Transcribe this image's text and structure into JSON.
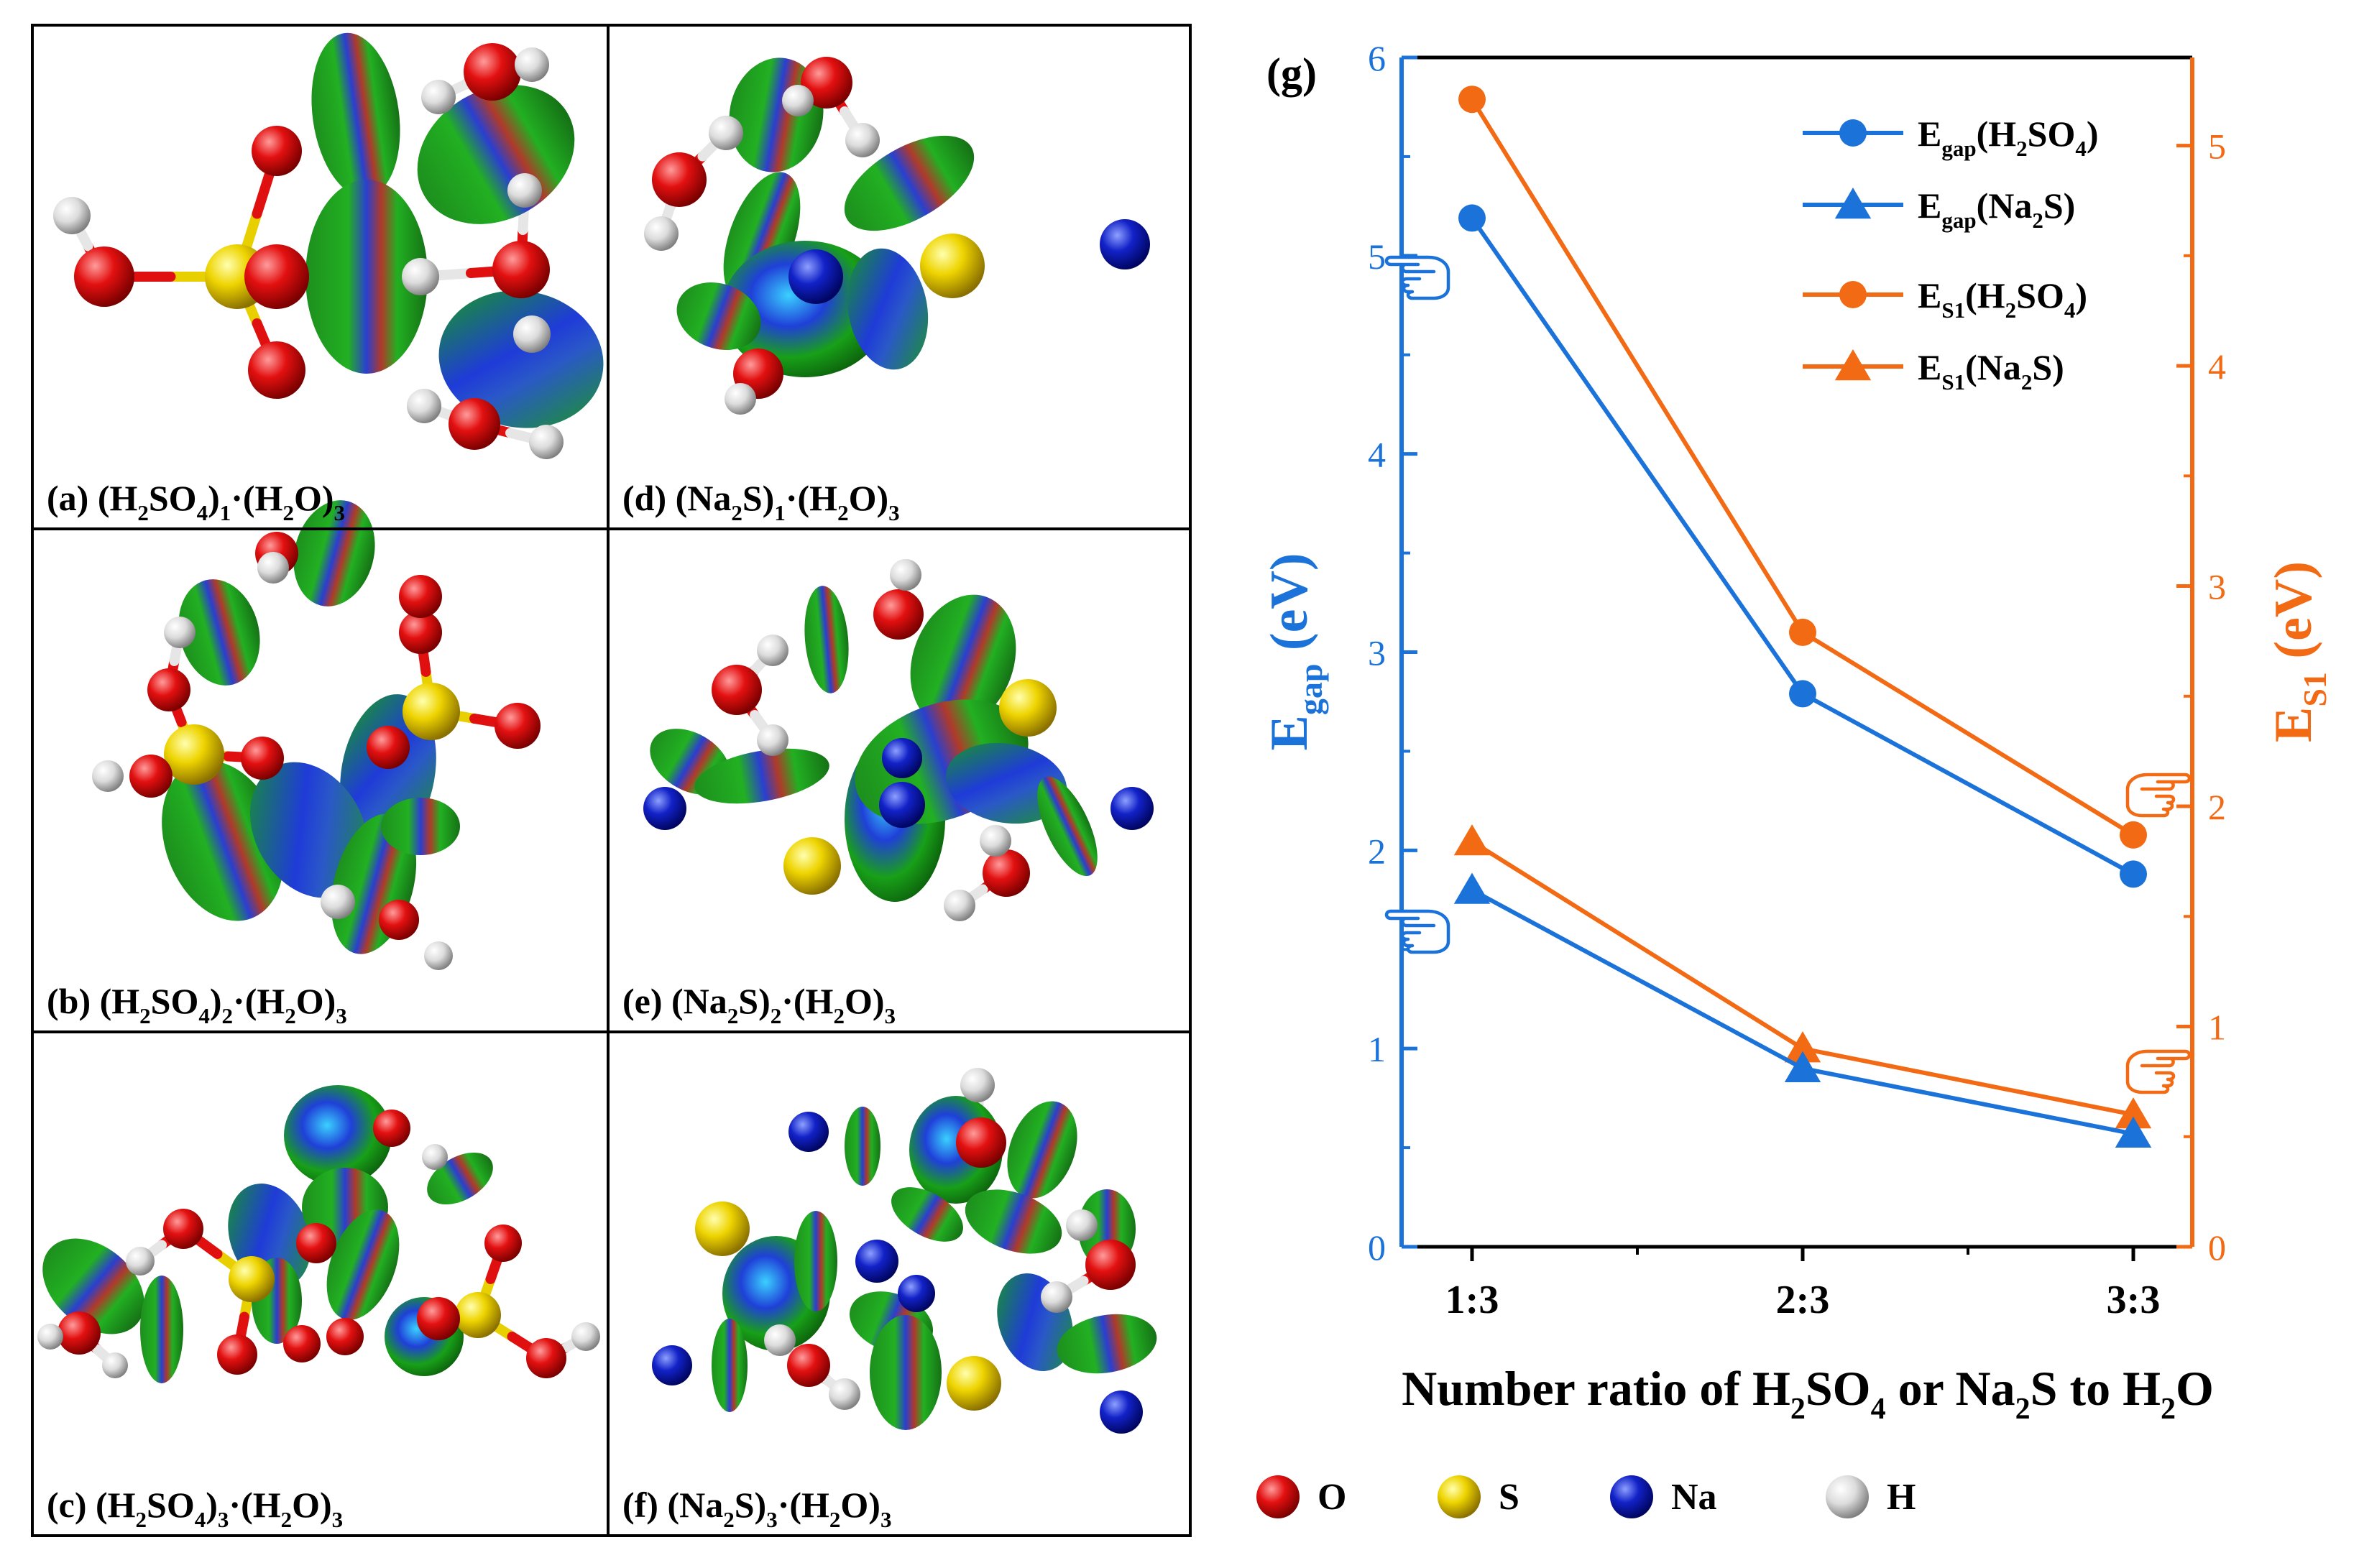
{
  "panels": [
    {
      "id": "a",
      "label": "(a)",
      "formula": [
        [
          "(H",
          ""
        ],
        [
          "2",
          "sub"
        ],
        [
          "SO",
          ""
        ],
        [
          "4",
          "sub"
        ],
        [
          ")",
          ""
        ],
        [
          "1",
          "sub"
        ],
        [
          "·(H",
          ""
        ],
        [
          "2",
          "sub"
        ],
        [
          "O)",
          ""
        ],
        [
          "3",
          "sub"
        ]
      ]
    },
    {
      "id": "d",
      "label": "(d)",
      "formula": [
        [
          "(Na",
          ""
        ],
        [
          "2",
          "sub"
        ],
        [
          "S)",
          ""
        ],
        [
          "1",
          "sub"
        ],
        [
          "·(H",
          ""
        ],
        [
          "2",
          "sub"
        ],
        [
          "O)",
          ""
        ],
        [
          "3",
          "sub"
        ]
      ]
    },
    {
      "id": "b",
      "label": "(b)",
      "formula": [
        [
          "(H",
          ""
        ],
        [
          "2",
          "sub"
        ],
        [
          "SO",
          ""
        ],
        [
          "4",
          "sub"
        ],
        [
          ")",
          ""
        ],
        [
          "2",
          "sub"
        ],
        [
          "·(H",
          ""
        ],
        [
          "2",
          "sub"
        ],
        [
          "O)",
          ""
        ],
        [
          "3",
          "sub"
        ]
      ]
    },
    {
      "id": "e",
      "label": "(e)",
      "formula": [
        [
          "(Na",
          ""
        ],
        [
          "2",
          "sub"
        ],
        [
          "S)",
          ""
        ],
        [
          "2",
          "sub"
        ],
        [
          "·(H",
          ""
        ],
        [
          "2",
          "sub"
        ],
        [
          "O)",
          ""
        ],
        [
          "3",
          "sub"
        ]
      ]
    },
    {
      "id": "c",
      "label": "(c)",
      "formula": [
        [
          "(H",
          ""
        ],
        [
          "2",
          "sub"
        ],
        [
          "SO",
          ""
        ],
        [
          "4",
          "sub"
        ],
        [
          ")",
          ""
        ],
        [
          "3",
          "sub"
        ],
        [
          "·(H",
          ""
        ],
        [
          "2",
          "sub"
        ],
        [
          "O)",
          ""
        ],
        [
          "3",
          "sub"
        ]
      ]
    },
    {
      "id": "f",
      "label": "(f)",
      "formula": [
        [
          "(Na",
          ""
        ],
        [
          "2",
          "sub"
        ],
        [
          "S)",
          ""
        ],
        [
          "3",
          "sub"
        ],
        [
          "·(H",
          ""
        ],
        [
          "2",
          "sub"
        ],
        [
          "O)",
          ""
        ],
        [
          "3",
          "sub"
        ]
      ]
    }
  ],
  "atom_legend": [
    {
      "symbol": "O",
      "color": "#e01010"
    },
    {
      "symbol": "S",
      "color": "#e8d000"
    },
    {
      "symbol": "Na",
      "color": "#1020c0"
    },
    {
      "symbol": "H",
      "color": "#d8d8d8"
    }
  ],
  "colors": {
    "blue": "#1b73d9",
    "orange": "#f26a14"
  },
  "chart_data": {
    "type": "line",
    "panel_label": "(g)",
    "categories": [
      "1:3",
      "2:3",
      "3:3"
    ],
    "xlabel": "Number ratio of H2SO4 or Na2S to H2O",
    "xlabel_parts": [
      [
        "Number ratio of H",
        ""
      ],
      [
        "2",
        "sub"
      ],
      [
        "SO",
        ""
      ],
      [
        "4",
        "sub"
      ],
      [
        " or Na",
        ""
      ],
      [
        "2",
        "sub"
      ],
      [
        "S to H",
        ""
      ],
      [
        "2",
        "sub"
      ],
      [
        "O",
        ""
      ]
    ],
    "ylabel_left_parts": [
      [
        "E",
        ""
      ],
      [
        "gap",
        "sub"
      ],
      [
        " (eV)",
        ""
      ]
    ],
    "ylabel_right_parts": [
      [
        "E",
        ""
      ],
      [
        "S1",
        "sub"
      ],
      [
        " (eV)",
        ""
      ]
    ],
    "ylim_left": [
      0,
      6
    ],
    "ylim_right": [
      0,
      5.4
    ],
    "yticks_left": [
      0,
      1,
      2,
      3,
      4,
      5,
      6
    ],
    "yticks_right": [
      0,
      1,
      2,
      3,
      4,
      5
    ],
    "series": [
      {
        "name": "Egap(H2SO4)",
        "axis": "left",
        "marker": "circle",
        "color": "#1b73d9",
        "values": [
          5.19,
          2.79,
          1.88
        ],
        "legend_parts": [
          [
            "E",
            ""
          ],
          [
            "gap",
            "sub"
          ],
          [
            "(H",
            ""
          ],
          [
            "2",
            "sub"
          ],
          [
            "SO",
            ""
          ],
          [
            "4",
            "sub"
          ],
          [
            ")",
            ""
          ]
        ]
      },
      {
        "name": "Egap(Na2S)",
        "axis": "left",
        "marker": "triangle",
        "color": "#1b73d9",
        "values": [
          1.8,
          0.9,
          0.57
        ],
        "legend_parts": [
          [
            "E",
            ""
          ],
          [
            "gap",
            "sub"
          ],
          [
            "(Na",
            ""
          ],
          [
            "2",
            "sub"
          ],
          [
            "S)",
            ""
          ]
        ]
      },
      {
        "name": "ES1(H2SO4)",
        "axis": "right",
        "marker": "circle",
        "color": "#f26a14",
        "values": [
          5.21,
          2.79,
          1.87
        ],
        "legend_parts": [
          [
            "E",
            ""
          ],
          [
            "S1",
            "sub"
          ],
          [
            "(H",
            ""
          ],
          [
            "2",
            "sub"
          ],
          [
            "SO",
            ""
          ],
          [
            "4",
            "sub"
          ],
          [
            ")",
            ""
          ]
        ]
      },
      {
        "name": "ES1(Na2S)",
        "axis": "right",
        "marker": "triangle",
        "color": "#f26a14",
        "values": [
          1.84,
          0.9,
          0.6
        ],
        "legend_parts": [
          [
            "E",
            ""
          ],
          [
            "S1",
            "sub"
          ],
          [
            "(Na",
            ""
          ],
          [
            "2",
            "sub"
          ],
          [
            "S)",
            ""
          ]
        ]
      }
    ]
  }
}
